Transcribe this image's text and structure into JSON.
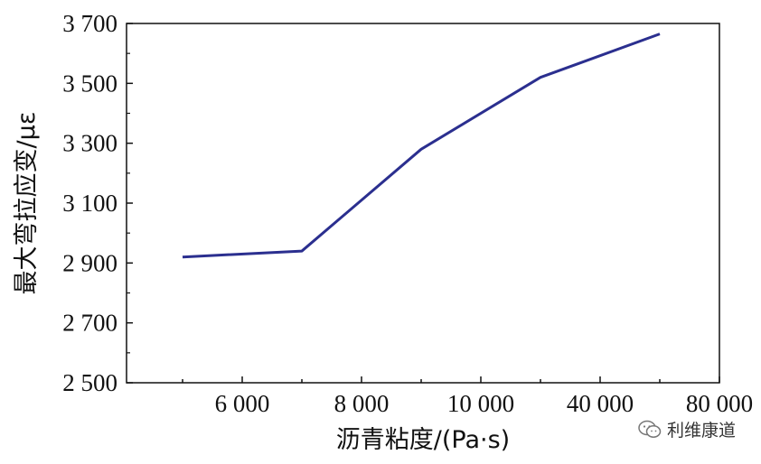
{
  "chart_data": {
    "type": "line",
    "title": "",
    "xlabel": "沥青粘度/(Pa·s)",
    "ylabel": "最大弯拉应变/με",
    "categories": [
      "5 000",
      "6 000",
      "7 000",
      "8 000",
      "9 000",
      "10 000",
      "20 000",
      "40 000",
      "60 000",
      "80 000"
    ],
    "x_tick_labels": [
      "6 000",
      "8 000",
      "10 000",
      "40 000",
      "80 000"
    ],
    "y_tick_labels": [
      "2 500",
      "2 700",
      "2 900",
      "3 100",
      "3 300",
      "3 500",
      "3 700"
    ],
    "y_ticks": [
      2500,
      2700,
      2900,
      3100,
      3300,
      3500,
      3700
    ],
    "ylim": [
      2500,
      3700
    ],
    "series": [
      {
        "x": [
          5000,
          7000,
          9000,
          20000,
          60000
        ],
        "values": [
          2920,
          2940,
          3280,
          3520,
          3665
        ],
        "color": "#2b2f8f"
      }
    ],
    "grid": false,
    "legend": "none"
  },
  "watermark": {
    "text": "利维康道",
    "icon": "wechat-icon"
  }
}
